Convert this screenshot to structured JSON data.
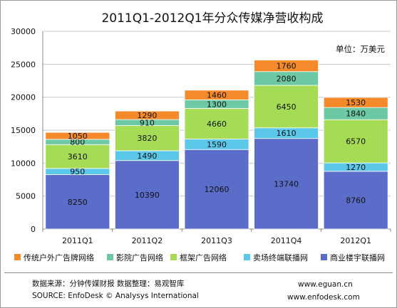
{
  "chart_data": {
    "type": "bar",
    "stacked": true,
    "title": "2011Q1-2012Q1年分众传媒净营收构成",
    "unit_label": "单位：万美元",
    "categories": [
      "2011Q1",
      "2011Q2",
      "2011Q3",
      "2011Q4",
      "2012Q1"
    ],
    "series": [
      {
        "name": "商业楼宇联播网",
        "color": "#5b6dc8",
        "values": [
          8250,
          10390,
          12060,
          13740,
          8760
        ]
      },
      {
        "name": "卖场终端联播网",
        "color": "#5bc8ea",
        "values": [
          950,
          1490,
          1590,
          1610,
          1270
        ]
      },
      {
        "name": "框架广告网络",
        "color": "#a6dc55",
        "values": [
          3610,
          3820,
          4660,
          6450,
          6570
        ]
      },
      {
        "name": "影院广告网络",
        "color": "#6cc9a4",
        "values": [
          800,
          910,
          1300,
          2080,
          1840
        ]
      },
      {
        "name": "传统户外广告牌网络",
        "color": "#f58a2a",
        "values": [
          1050,
          1290,
          1460,
          1760,
          1530
        ]
      }
    ],
    "legend_order": [
      4,
      3,
      2,
      1,
      0
    ],
    "ylim": [
      0,
      30000
    ],
    "yticks": [
      "0",
      "5000",
      "10000",
      "15000",
      "20000",
      "25000",
      "30000"
    ],
    "grid": true,
    "legend_position": "bottom"
  },
  "footer": {
    "source_cn": "数据来源：分钟传媒财报  数据整理：易观智库",
    "source_en": "SOURCE: EnfoDesk © Analysys International",
    "url1": "www.eguan.cn",
    "url2": "www.enfodesk.com"
  }
}
